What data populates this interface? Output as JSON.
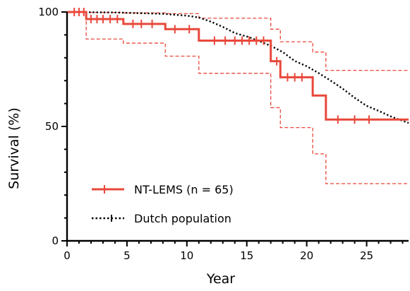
{
  "chart_data": {
    "type": "line",
    "xlabel": "Year",
    "ylabel": "Survival (%)",
    "xlim": [
      0,
      28.5
    ],
    "ylim": [
      0,
      100
    ],
    "x_ticks": [
      0,
      5,
      10,
      15,
      20,
      25
    ],
    "x_tick_labels": [
      "0",
      "5",
      "10",
      "15",
      "20",
      "25"
    ],
    "y_ticks": [
      0,
      50,
      100
    ],
    "y_tick_labels": [
      "0",
      "50",
      "100"
    ],
    "legend_position": "bottom-left",
    "series": [
      {
        "name": "NT-LEMS (n = 65)",
        "color": "#e8483b",
        "style": "step",
        "x": [
          0,
          1.6,
          4.7,
          8.2,
          11.0,
          17.0,
          17.8,
          20.5,
          21.6,
          28.5
        ],
        "y": [
          100,
          96.9,
          94.8,
          92.5,
          87.5,
          78.5,
          71.5,
          63.5,
          53,
          53
        ],
        "censor_x": [
          0.6,
          1.0,
          1.4,
          2.0,
          2.5,
          3.0,
          3.6,
          4.2,
          5.5,
          6.2,
          7.1,
          9.0,
          10.2,
          12.3,
          13.2,
          14.0,
          14.6,
          15.2,
          15.8,
          16.4,
          17.5,
          18.4,
          19.0,
          19.6,
          22.6,
          24.0,
          25.2
        ]
      },
      {
        "name": "",
        "color": "#e8483b",
        "style": "step-dashed",
        "x": [
          0,
          1.6,
          4.7,
          8.2,
          11.0,
          17.0,
          17.8,
          20.5,
          21.6,
          28.5
        ],
        "y": [
          100,
          99.8,
          99.6,
          99.3,
          97.3,
          92.5,
          87,
          82.5,
          74.5,
          74.5
        ]
      },
      {
        "name": "",
        "color": "#e8483b",
        "style": "step-dashed",
        "x": [
          0,
          1.6,
          4.7,
          8.2,
          11.0,
          17.0,
          17.8,
          20.5,
          21.6,
          28.5
        ],
        "y": [
          100,
          88.2,
          86.4,
          80.7,
          73.2,
          58.2,
          49.5,
          38,
          25,
          25
        ]
      },
      {
        "name": "Dutch population",
        "color": "#000000",
        "style": "dotted",
        "x": [
          0,
          4,
          8,
          10,
          11,
          12,
          13,
          14,
          15,
          16,
          17,
          18,
          19,
          20,
          21,
          22,
          23,
          24,
          25,
          26,
          27,
          28.5
        ],
        "y": [
          100,
          99.8,
          99.2,
          98.4,
          97.6,
          95.8,
          93.5,
          90.8,
          89.3,
          87.4,
          85.2,
          82.5,
          78.6,
          76.3,
          73.3,
          70.0,
          66.5,
          62.5,
          59.0,
          56.8,
          54.4,
          51.5
        ]
      }
    ]
  }
}
